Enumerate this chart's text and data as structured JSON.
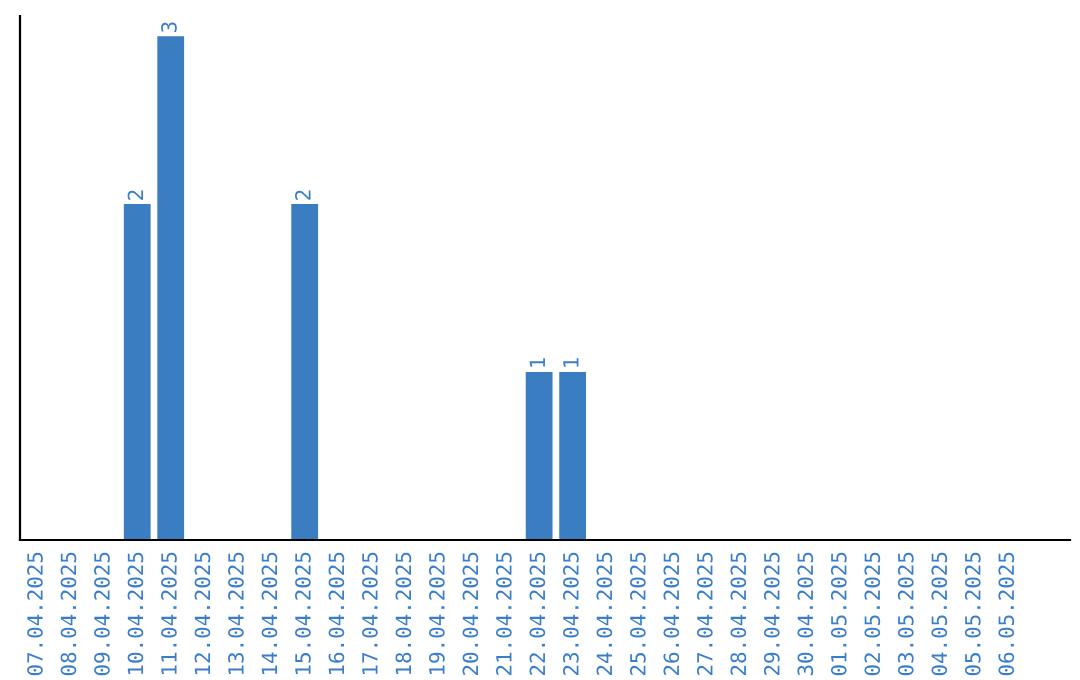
{
  "chart_data": {
    "type": "bar",
    "categories": [
      "07.04.2025",
      "08.04.2025",
      "09.04.2025",
      "10.04.2025",
      "11.04.2025",
      "12.04.2025",
      "13.04.2025",
      "14.04.2025",
      "15.04.2025",
      "16.04.2025",
      "17.04.2025",
      "18.04.2025",
      "19.04.2025",
      "20.04.2025",
      "21.04.2025",
      "22.04.2025",
      "23.04.2025",
      "24.04.2025",
      "25.04.2025",
      "26.04.2025",
      "27.04.2025",
      "28.04.2025",
      "29.04.2025",
      "30.04.2025",
      "01.05.2025",
      "02.05.2025",
      "03.05.2025",
      "04.05.2025",
      "05.05.2025",
      "06.05.2025"
    ],
    "values": [
      0,
      0,
      0,
      2,
      3,
      0,
      0,
      0,
      2,
      0,
      0,
      0,
      0,
      0,
      0,
      1,
      1,
      0,
      0,
      0,
      0,
      0,
      0,
      0,
      0,
      0,
      0,
      0,
      0,
      0
    ],
    "value_labels": [
      null,
      null,
      null,
      "2",
      "3",
      null,
      null,
      null,
      "2",
      null,
      null,
      null,
      null,
      null,
      null,
      "1",
      "1",
      null,
      null,
      null,
      null,
      null,
      null,
      null,
      null,
      null,
      null,
      null,
      null,
      null
    ],
    "color": "#3b7dc1",
    "grid": false,
    "legend": false
  }
}
